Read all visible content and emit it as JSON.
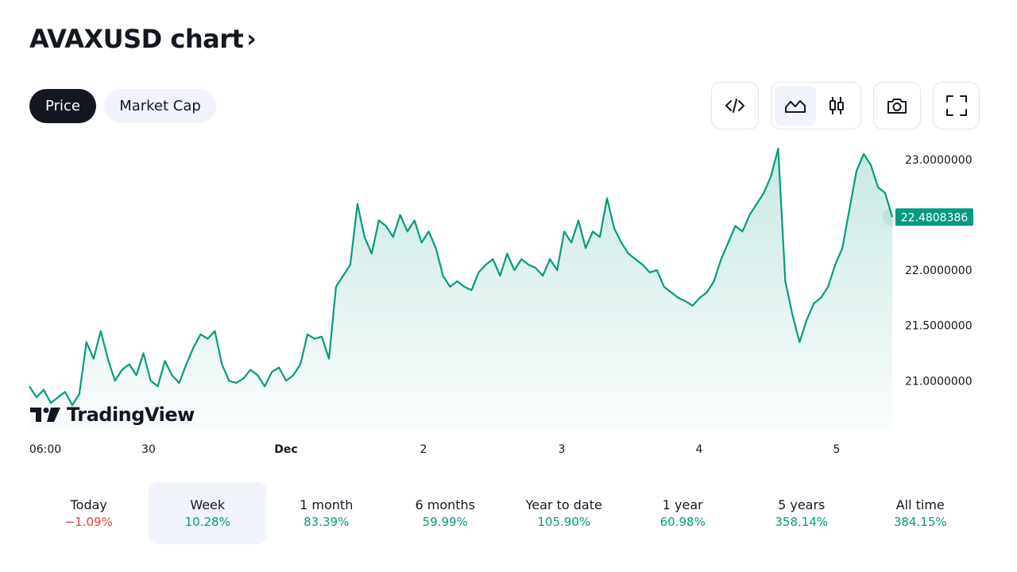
{
  "header": {
    "title": "AVAXUSD chart",
    "chevron": "›"
  },
  "tabs": [
    {
      "label": "Price",
      "active": true
    },
    {
      "label": "Market Cap",
      "active": false
    }
  ],
  "toolbar": {
    "embed_icon": "code-icon",
    "area_icon": "area-chart-icon",
    "candle_icon": "candlestick-icon",
    "camera_icon": "camera-icon",
    "fullscreen_icon": "fullscreen-icon"
  },
  "brand": {
    "logo_text": "TradingView"
  },
  "colors": {
    "line": "#089981",
    "fill_top": "#cdebe5",
    "negative": "#f23645",
    "positive": "#089981",
    "dark": "#131722"
  },
  "chart_data": {
    "type": "area",
    "series": [
      {
        "values": [
          20.95,
          20.85,
          20.92,
          20.8,
          20.85,
          20.9,
          20.78,
          20.88,
          21.35,
          21.2,
          21.45,
          21.2,
          21.0,
          21.1,
          21.15,
          21.05,
          21.25,
          21.0,
          20.95,
          21.18,
          21.05,
          20.98,
          21.15,
          21.3,
          21.42,
          21.38,
          21.45,
          21.15,
          21.0,
          20.98,
          21.02,
          21.1,
          21.05,
          20.95,
          21.08,
          21.12,
          21.0,
          21.05,
          21.15,
          21.42,
          21.38,
          21.4,
          21.2,
          21.85,
          21.95,
          22.05,
          22.6,
          22.3,
          22.15,
          22.45,
          22.4,
          22.3,
          22.5,
          22.35,
          22.45,
          22.25,
          22.35,
          22.2,
          21.95,
          21.85,
          21.9,
          21.85,
          21.82,
          21.98,
          22.05,
          22.1,
          21.95,
          22.15,
          22.0,
          22.1,
          22.05,
          22.02,
          21.95,
          22.1,
          22.0,
          22.35,
          22.25,
          22.45,
          22.2,
          22.35,
          22.3,
          22.65,
          22.38,
          22.25,
          22.15,
          22.1,
          22.05,
          21.98,
          22.0,
          21.85,
          21.8,
          21.75,
          21.72,
          21.68,
          21.75,
          21.8,
          21.9,
          22.1,
          22.25,
          22.4,
          22.35,
          22.5,
          22.6,
          22.7,
          22.85,
          23.1,
          21.9,
          21.6,
          21.35,
          21.55,
          21.7,
          21.75,
          21.85,
          22.05,
          22.2,
          22.55,
          22.9,
          23.05,
          22.95,
          22.75,
          22.7,
          22.48
        ]
      }
    ],
    "x_tick_labels": [
      "06:00",
      "30",
      "Dec",
      "2",
      "3",
      "4",
      "5"
    ],
    "y_tick_labels": [
      "23.0000000",
      "22.0000000",
      "21.5000000",
      "21.0000000"
    ],
    "y_ticks": [
      23.0,
      22.0,
      21.5,
      21.0
    ],
    "ylim": [
      20.55,
      23.15
    ],
    "last_price": "22.4808386"
  },
  "periods": [
    {
      "label": "Today",
      "value": "−1.09%",
      "sign": "neg",
      "active": false
    },
    {
      "label": "Week",
      "value": "10.28%",
      "sign": "pos",
      "active": true
    },
    {
      "label": "1 month",
      "value": "83.39%",
      "sign": "pos",
      "active": false
    },
    {
      "label": "6 months",
      "value": "59.99%",
      "sign": "pos",
      "active": false
    },
    {
      "label": "Year to date",
      "value": "105.90%",
      "sign": "pos",
      "active": false
    },
    {
      "label": "1 year",
      "value": "60.98%",
      "sign": "pos",
      "active": false
    },
    {
      "label": "5 years",
      "value": "358.14%",
      "sign": "pos",
      "active": false
    },
    {
      "label": "All time",
      "value": "384.15%",
      "sign": "pos",
      "active": false
    }
  ]
}
